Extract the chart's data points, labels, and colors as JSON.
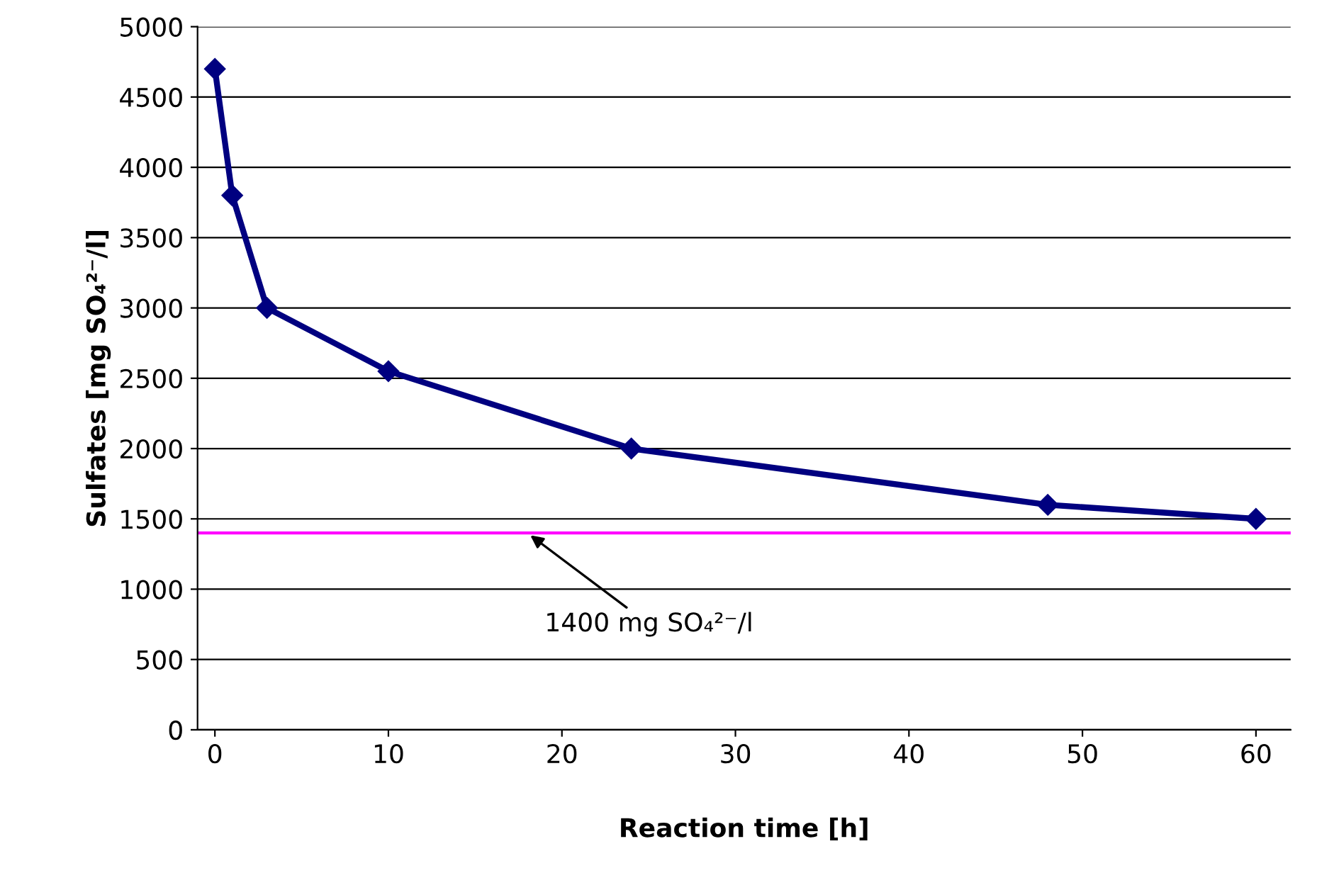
{
  "chart_data": {
    "type": "line",
    "xlabel": "Reaction time [h]",
    "ylabel": "Sulfates [mg SO₄²⁻/l]",
    "x": [
      0,
      1,
      3,
      10,
      24,
      48,
      60
    ],
    "series": [
      {
        "color": "#000080",
        "values": [
          4700,
          3800,
          3000,
          2550,
          2000,
          1600,
          1500
        ]
      }
    ],
    "marker": "diamond",
    "line_style": "solid",
    "xlim": [
      -1,
      62
    ],
    "xticks": [
      0,
      10,
      20,
      30,
      40,
      50,
      60
    ],
    "ylim": [
      0,
      5000
    ],
    "yticks": [
      0,
      500,
      1000,
      1500,
      2000,
      2500,
      3000,
      3500,
      4000,
      4500,
      5000
    ],
    "grid": "y",
    "ref_lines": [
      {
        "axis": "y",
        "value": 1400,
        "color": "#ff00ff",
        "line_style": "solid"
      }
    ],
    "annotations": [
      {
        "text": "1400 mg SO₄²⁻/l",
        "x": 18,
        "y": 1400
      }
    ]
  }
}
